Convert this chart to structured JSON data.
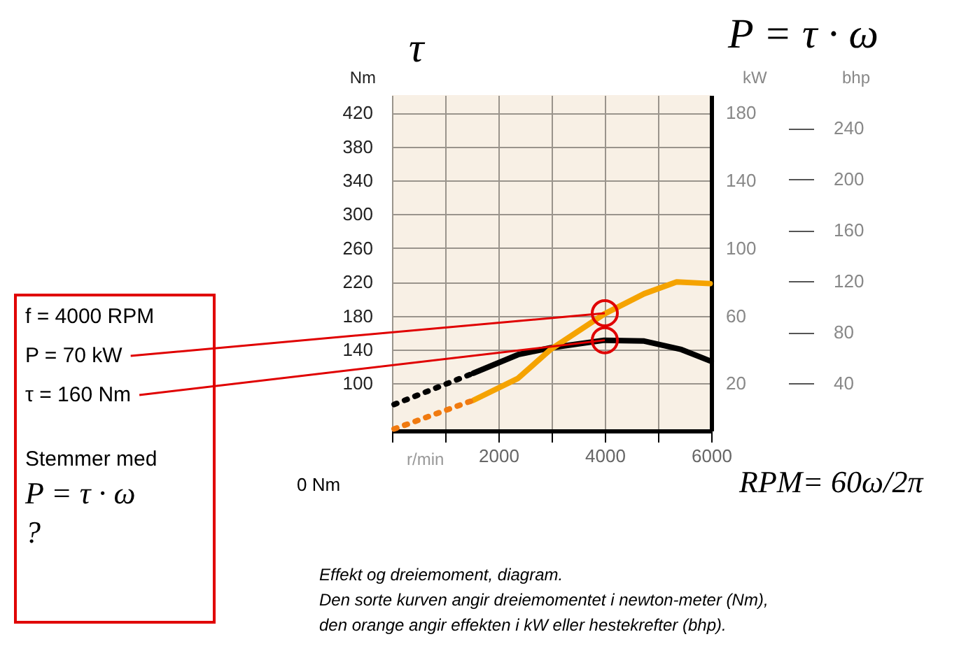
{
  "chart_data": {
    "type": "line",
    "xlabel": "r/min",
    "ylabel": "Nm",
    "y2label": "kW",
    "y3label": "bhp",
    "xlim": [
      0,
      6000
    ],
    "xticks": [
      {
        "value": 0,
        "label": null
      },
      {
        "value": 1000,
        "label": null
      },
      2000,
      {
        "value": 3000,
        "label": null
      },
      4000,
      {
        "value": 5000,
        "label": null
      },
      6000
    ],
    "ylim": [
      44,
      441
    ],
    "yticks": [
      100,
      140,
      180,
      220,
      260,
      300,
      340,
      380,
      420
    ],
    "y2lim": [
      -8,
      190.5
    ],
    "y2ticks": [
      20,
      60,
      100,
      140,
      180
    ],
    "y3lim": [
      3,
      266
    ],
    "y3ticks": [
      40,
      80,
      120,
      160,
      200,
      240
    ],
    "grid": true,
    "line_style": "solid",
    "series": [
      {
        "color": "#000000",
        "axis": "y",
        "x": [
          1530,
          2370,
          2980,
          3990,
          4740,
          5440,
          6000
        ],
        "values": [
          112,
          134,
          142,
          151,
          150,
          140,
          126
        ]
      },
      {
        "color": "#000000",
        "axis": "y",
        "line_style": "dotted",
        "x": [
          40,
          1530
        ],
        "values": [
          75,
          112
        ]
      },
      {
        "color": "#f5a300",
        "axis": "y2",
        "x": [
          1530,
          2370,
          2980,
          3990,
          4740,
          5350,
          5980
        ],
        "values": [
          10,
          23,
          40,
          61,
          73,
          80,
          79
        ]
      },
      {
        "color": "#f07a10",
        "axis": "y2",
        "line_style": "dotted",
        "x": [
          40,
          1530
        ],
        "values": [
          -7,
          10
        ]
      }
    ],
    "annotations": [
      "τ",
      "P = τ · ω",
      "f = 4000 RPM",
      {
        "text": "P = 70 kW",
        "x": 4000,
        "y": 183
      },
      {
        "text": "τ = 160 Nm",
        "x": 4000,
        "y": 151
      },
      "Stemmer med",
      "P = τ · ω",
      "?",
      "0 Nm",
      "RPM= 60ω/2π",
      "Effekt og dreiemoment, diagram.",
      "Den sorte kurven angir dreiemomentet i newton-meter (Nm),",
      "den orange angir effekten i kW eller hestekrefter (bhp)."
    ]
  }
}
